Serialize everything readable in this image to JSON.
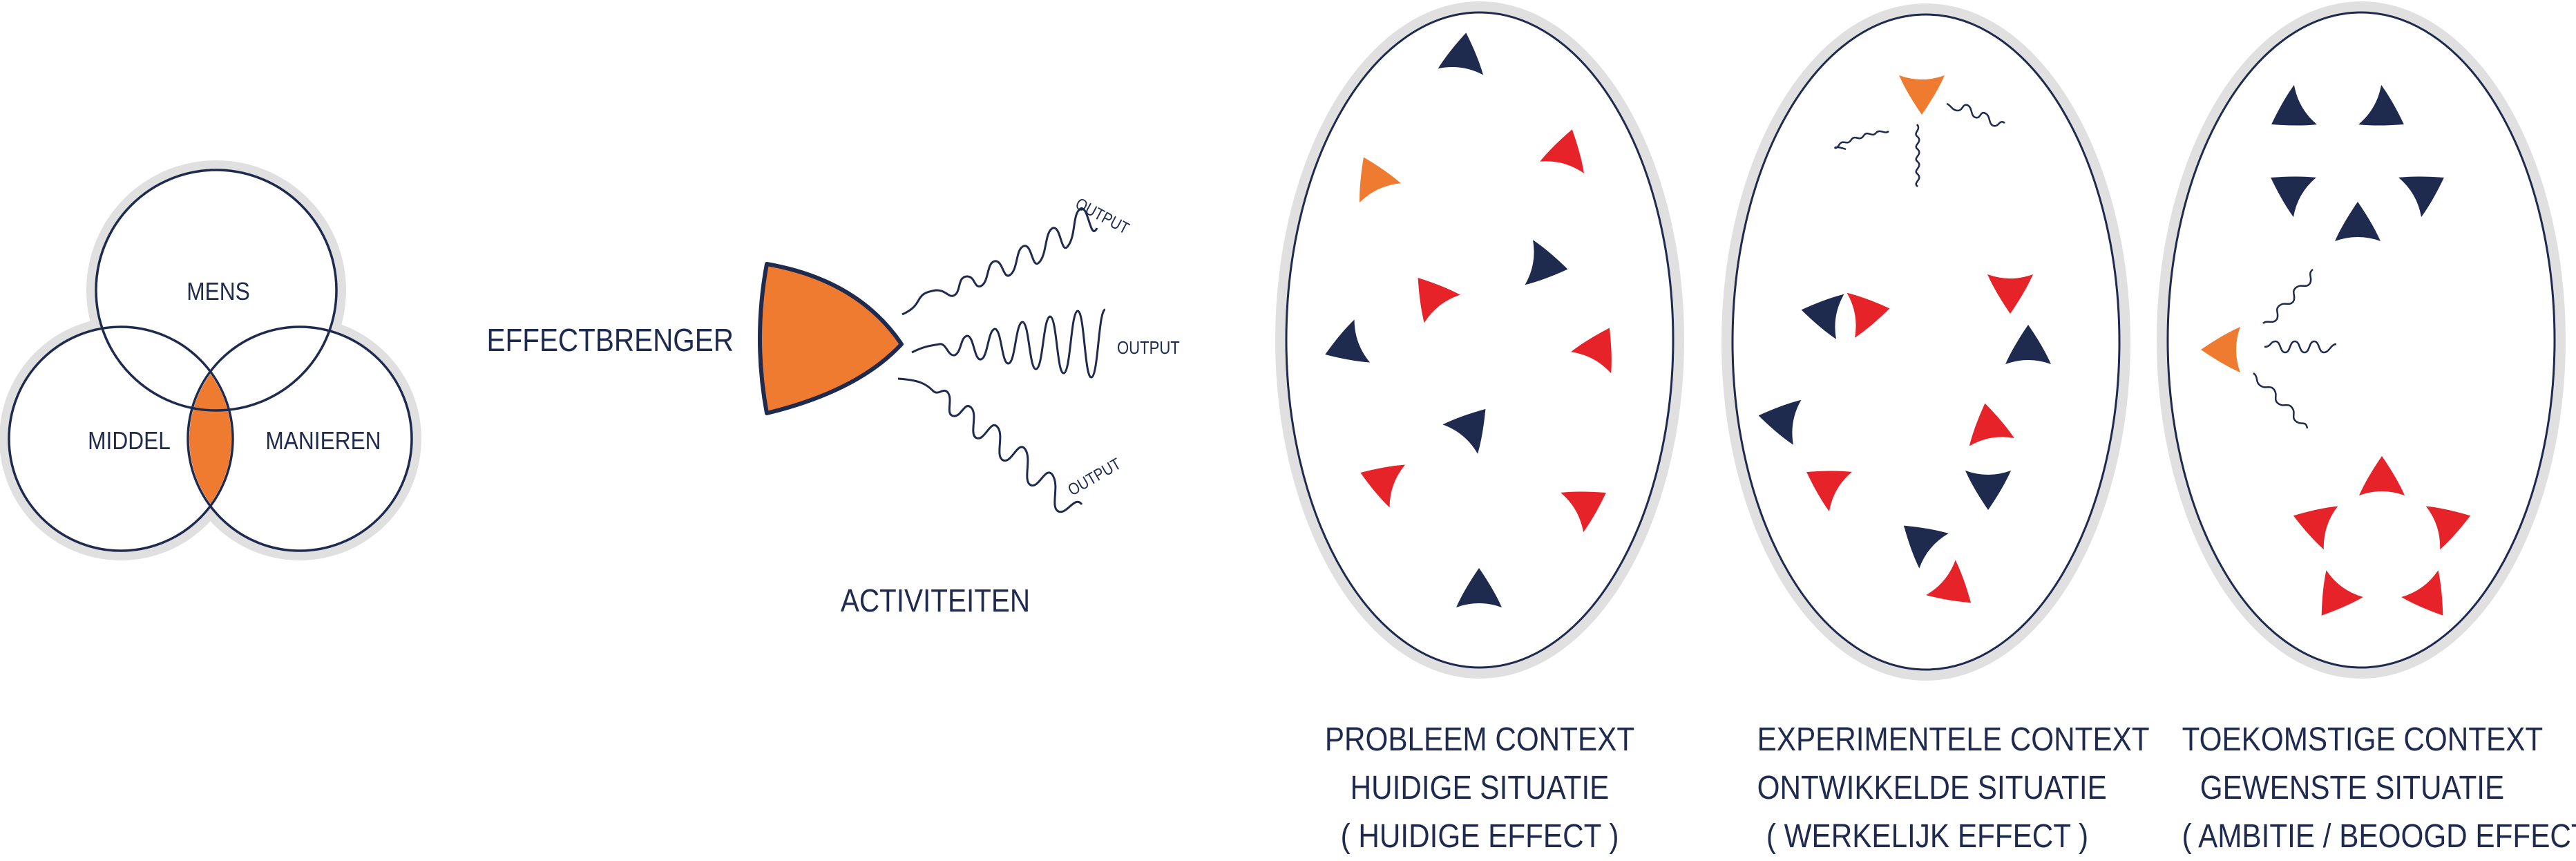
{
  "venn": {
    "circles": [
      "MENS",
      "MIDDEL",
      "MANIEREN"
    ]
  },
  "effectbrenger": {
    "label": "EFFECTBRENGER",
    "outputs": [
      "OUTPUT",
      "OUTPUT",
      "OUTPUT"
    ],
    "activities_label": "ACTIVITEITEN"
  },
  "contexts": [
    {
      "lines": [
        "PROBLEEM CONTEXT",
        "HUIDIGE SITUATIE",
        "( HUIDIGE EFFECT )"
      ]
    },
    {
      "lines": [
        "EXPERIMENTELE CONTEXT",
        "ONTWIKKELDE SITUATIE",
        "( WERKELIJK EFFECT )"
      ]
    },
    {
      "lines": [
        "TOEKOMSTIGE CONTEXT",
        "GEWENSTE SITUATIE",
        "( AMBITIE / BEOOGD EFFECT )"
      ]
    }
  ],
  "colors": {
    "navy": "#1f2a4f",
    "red": "#e52329",
    "orange": "#ef7b31",
    "halo": "#e0e0e0"
  }
}
